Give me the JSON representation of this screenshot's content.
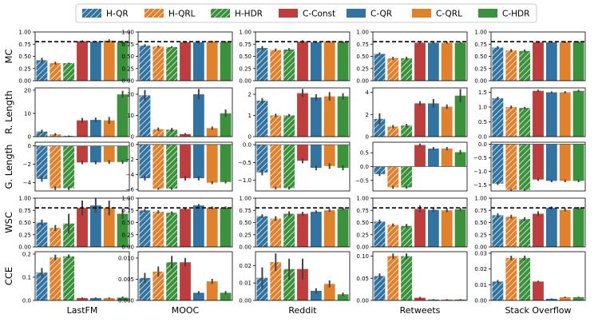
{
  "colors": {
    "QR": "#3274a1",
    "QRL": "#e1812c",
    "HDR": "#3a923a",
    "CONST": "#c03d3e"
  },
  "legend": [
    {
      "label": "H-QR",
      "color": "#3274a1",
      "hatch": true
    },
    {
      "label": "H-QRL",
      "color": "#e1812c",
      "hatch": true
    },
    {
      "label": "H-HDR",
      "color": "#3a923a",
      "hatch": true
    },
    {
      "label": "C-Const",
      "color": "#c03d3e",
      "hatch": false
    },
    {
      "label": "C-QR",
      "color": "#3274a1",
      "hatch": false
    },
    {
      "label": "C-QRL",
      "color": "#e1812c",
      "hatch": false
    },
    {
      "label": "C-HDR",
      "color": "#3a923a",
      "hatch": false
    }
  ],
  "chart_data": {
    "type": "bar",
    "series_names": [
      "H-QR",
      "H-QRL",
      "H-HDR",
      "C-Const",
      "C-QR",
      "C-QRL",
      "C-HDR"
    ],
    "columns": [
      "LastFM",
      "MOOC",
      "Reddit",
      "Retweets",
      "Stack Overflow"
    ],
    "rows": [
      {
        "label": "MC",
        "reference_line": 0.8,
        "panels": [
          {
            "ylim": [
              0,
              1.0
            ],
            "ticks": [
              "0.00",
              "0.25",
              "0.50",
              "0.75",
              "1.00"
            ],
            "tickvals": [
              0,
              0.25,
              0.5,
              0.75,
              1.0
            ],
            "values": [
              0.42,
              0.36,
              0.36,
              0.81,
              0.8,
              0.82,
              0.79
            ],
            "err": [
              0.05,
              0.03,
              0.01,
              0.02,
              0.02,
              0.03,
              0.03
            ]
          },
          {
            "ylim": [
              0,
              1.0
            ],
            "ticks": [
              "0.00",
              "0.25",
              "0.50",
              "0.75",
              "1.00"
            ],
            "tickvals": [
              0,
              0.25,
              0.5,
              0.75,
              1.0
            ],
            "values": [
              0.72,
              0.7,
              0.69,
              0.79,
              0.79,
              0.8,
              0.79
            ],
            "err": [
              0.03,
              0.02,
              0.02,
              0.02,
              0.03,
              0.02,
              0.02
            ]
          },
          {
            "ylim": [
              0,
              1.0
            ],
            "ticks": [
              "0.00",
              "0.25",
              "0.50",
              "0.75",
              "1.00"
            ],
            "tickvals": [
              0,
              0.25,
              0.5,
              0.75,
              1.0
            ],
            "values": [
              0.67,
              0.63,
              0.64,
              0.8,
              0.79,
              0.8,
              0.79
            ],
            "err": [
              0.04,
              0.03,
              0.03,
              0.03,
              0.02,
              0.02,
              0.02
            ]
          },
          {
            "ylim": [
              0,
              1.0
            ],
            "ticks": [
              "0.00",
              "0.25",
              "0.50",
              "0.75",
              "1.00"
            ],
            "tickvals": [
              0,
              0.25,
              0.5,
              0.75,
              1.0
            ],
            "values": [
              0.55,
              0.46,
              0.46,
              0.78,
              0.78,
              0.78,
              0.78
            ],
            "err": [
              0.03,
              0.03,
              0.03,
              0.02,
              0.02,
              0.02,
              0.02
            ]
          },
          {
            "ylim": [
              0,
              1.0
            ],
            "ticks": [
              "0.00",
              "0.25",
              "0.50",
              "0.75",
              "1.00"
            ],
            "tickvals": [
              0,
              0.25,
              0.5,
              0.75,
              1.0
            ],
            "values": [
              0.68,
              0.62,
              0.61,
              0.79,
              0.79,
              0.79,
              0.79
            ],
            "err": [
              0.03,
              0.03,
              0.03,
              0.02,
              0.02,
              0.02,
              0.02
            ]
          }
        ]
      },
      {
        "label": "R. Length",
        "reference_line": null,
        "panels": [
          {
            "ylim": [
              0,
              21
            ],
            "ticks": [
              "0",
              "10",
              "20"
            ],
            "tickvals": [
              0,
              10,
              20
            ],
            "values": [
              2.2,
              1.0,
              0.3,
              7.0,
              7.2,
              7.0,
              18.2
            ],
            "err": [
              0.8,
              0.5,
              0.2,
              1.0,
              1.0,
              1.5,
              1.5
            ]
          },
          {
            "ylim": [
              0,
              23
            ],
            "ticks": [
              "0",
              "10",
              "20"
            ],
            "tickvals": [
              0,
              10,
              20
            ],
            "values": [
              19.5,
              3.5,
              3.3,
              1.2,
              20.0,
              4.0,
              11.0
            ],
            "err": [
              2.5,
              0.8,
              0.8,
              0.4,
              2.5,
              0.8,
              1.8
            ]
          },
          {
            "ylim": [
              0,
              2.3
            ],
            "ticks": [
              "0",
              "1",
              "2"
            ],
            "tickvals": [
              0,
              1,
              2
            ],
            "values": [
              1.7,
              1.0,
              1.0,
              2.05,
              1.85,
              1.9,
              1.9
            ],
            "err": [
              0.12,
              0.08,
              0.07,
              0.2,
              0.15,
              0.2,
              0.15
            ]
          },
          {
            "ylim": [
              0,
              4.4
            ],
            "ticks": [
              "0",
              "2",
              "4"
            ],
            "tickvals": [
              0,
              2,
              4
            ],
            "values": [
              1.6,
              0.9,
              1.0,
              3.0,
              3.0,
              2.7,
              3.7
            ],
            "err": [
              0.5,
              0.15,
              0.15,
              0.2,
              0.4,
              0.2,
              0.6
            ]
          },
          {
            "ylim": [
              0,
              1.65
            ],
            "ticks": [
              "0.0",
              "0.5",
              "1.0",
              "1.5"
            ],
            "tickvals": [
              0,
              0.5,
              1.0,
              1.5
            ],
            "values": [
              1.3,
              1.0,
              0.97,
              1.55,
              1.5,
              1.5,
              1.55
            ],
            "err": [
              0.05,
              0.05,
              0.04,
              0.04,
              0.03,
              0.04,
              0.04
            ]
          }
        ]
      },
      {
        "label": "G. Length",
        "reference_line": null,
        "panels": [
          {
            "ylim": [
              -4.9,
              0.4
            ],
            "ticks": [
              "-4",
              "-2",
              "0"
            ],
            "tickvals": [
              -4,
              -2,
              0
            ],
            "values": [
              -3.6,
              -4.6,
              -4.6,
              -1.8,
              -1.8,
              -1.75,
              -1.75
            ],
            "err": [
              0.3,
              0.2,
              0.2,
              0.2,
              0.2,
              0.2,
              0.2
            ]
          },
          {
            "ylim": [
              -6.2,
              0.3
            ],
            "ticks": [
              "-6",
              "-4",
              "-2",
              "0"
            ],
            "tickvals": [
              -6,
              -4,
              -2,
              0
            ],
            "values": [
              -4.5,
              -5.9,
              -5.9,
              -4.5,
              -4.5,
              -5.1,
              -5.0
            ],
            "err": [
              0.3,
              0.15,
              0.15,
              0.3,
              0.3,
              0.2,
              0.2
            ]
          },
          {
            "ylim": [
              -1.3,
              0.07
            ],
            "ticks": [
              "-1.0",
              "-0.5",
              "0.0"
            ],
            "tickvals": [
              -1.0,
              -0.5,
              0.0
            ],
            "values": [
              -0.78,
              -1.22,
              -1.22,
              -0.45,
              -0.65,
              -0.6,
              -0.65
            ],
            "err": [
              0.08,
              0.04,
              0.04,
              0.07,
              0.07,
              0.08,
              0.07
            ]
          },
          {
            "ylim": [
              -0.88,
              0.88
            ],
            "ticks": [
              "-0.5",
              "0.0",
              "0.5"
            ],
            "tickvals": [
              -0.5,
              0.0,
              0.5
            ],
            "values": [
              -0.27,
              -0.75,
              -0.75,
              0.78,
              0.65,
              0.65,
              0.52
            ],
            "err": [
              0.07,
              0.05,
              0.05,
              0.05,
              0.06,
              0.06,
              0.08
            ]
          },
          {
            "ylim": [
              -1.72,
              0.07
            ],
            "ticks": [
              "-1.5",
              "-1.0",
              "-0.5",
              "0.0"
            ],
            "tickvals": [
              -1.5,
              -1.0,
              -0.5,
              0.0
            ],
            "values": [
              -1.45,
              -1.68,
              -1.68,
              -1.3,
              -1.35,
              -1.35,
              -1.35
            ],
            "err": [
              0.05,
              0.03,
              0.03,
              0.05,
              0.05,
              0.05,
              0.05
            ]
          }
        ]
      },
      {
        "label": "WSC",
        "reference_line": 0.8,
        "panels": [
          {
            "ylim": [
              0,
              1.0
            ],
            "ticks": [
              "0.00",
              "0.25",
              "0.50",
              "0.75",
              "1.00"
            ],
            "tickvals": [
              0,
              0.25,
              0.5,
              0.75,
              1.0
            ],
            "values": [
              0.5,
              0.39,
              0.48,
              0.8,
              0.85,
              0.8,
              0.68
            ],
            "err": [
              0.06,
              0.06,
              0.2,
              0.15,
              0.15,
              0.15,
              0.1
            ]
          },
          {
            "ylim": [
              0,
              1.0
            ],
            "ticks": [
              "0.00",
              "0.25",
              "0.50",
              "0.75",
              "1.00"
            ],
            "tickvals": [
              0,
              0.25,
              0.5,
              0.75,
              1.0
            ],
            "values": [
              0.75,
              0.72,
              0.7,
              0.78,
              0.85,
              0.8,
              0.8
            ],
            "err": [
              0.03,
              0.03,
              0.03,
              0.03,
              0.03,
              0.03,
              0.03
            ]
          },
          {
            "ylim": [
              0,
              1.0
            ],
            "ticks": [
              "0.00",
              "0.25",
              "0.50",
              "0.75",
              "1.00"
            ],
            "tickvals": [
              0,
              0.25,
              0.5,
              0.75,
              1.0
            ],
            "values": [
              0.63,
              0.58,
              0.68,
              0.68,
              0.72,
              0.75,
              0.78
            ],
            "err": [
              0.04,
              0.05,
              0.05,
              0.04,
              0.03,
              0.03,
              0.03
            ]
          },
          {
            "ylim": [
              0,
              1.0
            ],
            "ticks": [
              "0.00",
              "0.25",
              "0.50",
              "0.75",
              "1.00"
            ],
            "tickvals": [
              0,
              0.25,
              0.5,
              0.75,
              1.0
            ],
            "values": [
              0.52,
              0.45,
              0.43,
              0.78,
              0.76,
              0.75,
              0.77
            ],
            "err": [
              0.04,
              0.03,
              0.04,
              0.07,
              0.04,
              0.04,
              0.03
            ]
          },
          {
            "ylim": [
              0,
              1.0
            ],
            "ticks": [
              "0.00",
              "0.25",
              "0.50",
              "0.75",
              "1.00"
            ],
            "tickvals": [
              0,
              0.25,
              0.5,
              0.75,
              1.0
            ],
            "values": [
              0.65,
              0.62,
              0.57,
              0.68,
              0.8,
              0.76,
              0.79
            ],
            "err": [
              0.04,
              0.04,
              0.04,
              0.05,
              0.03,
              0.03,
              0.03
            ]
          }
        ]
      },
      {
        "label": "CCE",
        "reference_line": null,
        "panels": [
          {
            "ylim": [
              0,
              0.21
            ],
            "ticks": [
              "0.0",
              "0.1",
              "0.2"
            ],
            "tickvals": [
              0,
              0.1,
              0.2
            ],
            "values": [
              0.12,
              0.185,
              0.19,
              0.01,
              0.01,
              0.01,
              0.012
            ],
            "err": [
              0.02,
              0.012,
              0.008,
              0.003,
              0.003,
              0.003,
              0.005
            ]
          },
          {
            "ylim": [
              0,
              0.0115
            ],
            "ticks": [
              "0.000",
              "0.005",
              "0.010"
            ],
            "tickvals": [
              0,
              0.005,
              0.01
            ],
            "values": [
              0.0053,
              0.0068,
              0.009,
              0.009,
              0.0018,
              0.0045,
              0.0018
            ],
            "err": [
              0.0012,
              0.0012,
              0.0015,
              0.001,
              0.0004,
              0.0006,
              0.0004
            ]
          },
          {
            "ylim": [
              0,
              0.028
            ],
            "ticks": [
              "0.00",
              "0.01",
              "0.02"
            ],
            "tickvals": [
              0,
              0.01,
              0.02
            ],
            "values": [
              0.013,
              0.022,
              0.018,
              0.018,
              0.0055,
              0.0095,
              0.0035
            ],
            "err": [
              0.006,
              0.005,
              0.006,
              0.006,
              0.0015,
              0.002,
              0.001
            ]
          },
          {
            "ylim": [
              0,
              0.11
            ],
            "ticks": [
              "0.00",
              "0.05",
              "0.10"
            ],
            "tickvals": [
              0,
              0.05,
              0.1
            ],
            "values": [
              0.055,
              0.1,
              0.1,
              0.006,
              0.002,
              0.002,
              0.002
            ],
            "err": [
              0.006,
              0.006,
              0.006,
              0.002,
              0.001,
              0.001,
              0.001
            ]
          },
          {
            "ylim": [
              0,
              0.031
            ],
            "ticks": [
              "0.00",
              "0.01",
              "0.02",
              "0.03"
            ],
            "tickvals": [
              0,
              0.01,
              0.02,
              0.03
            ],
            "values": [
              0.012,
              0.027,
              0.027,
              0.012,
              0.001,
              0.002,
              0.002
            ],
            "err": [
              0.001,
              0.0015,
              0.0015,
              0.0005,
              0.0003,
              0.0004,
              0.0004
            ]
          }
        ]
      }
    ]
  }
}
